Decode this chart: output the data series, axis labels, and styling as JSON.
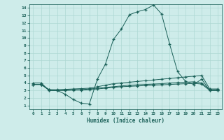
{
  "xlabel": "Humidex (Indice chaleur)",
  "bg_color": "#ceecea",
  "grid_color": "#aed8d4",
  "line_color": "#1a6058",
  "xlim": [
    -0.5,
    23.5
  ],
  "ylim": [
    0.5,
    14.5
  ],
  "xticks": [
    0,
    1,
    2,
    3,
    4,
    5,
    6,
    7,
    8,
    9,
    10,
    11,
    12,
    13,
    14,
    15,
    16,
    17,
    18,
    19,
    20,
    21,
    22,
    23
  ],
  "yticks": [
    1,
    2,
    3,
    4,
    5,
    6,
    7,
    8,
    9,
    10,
    11,
    12,
    13,
    14
  ],
  "series1_x": [
    0,
    1,
    2,
    3,
    4,
    5,
    6,
    7,
    8,
    9,
    10,
    11,
    12,
    13,
    14,
    15,
    16,
    17,
    18,
    19,
    20,
    21,
    22,
    23
  ],
  "series1_y": [
    4.0,
    4.0,
    3.0,
    3.0,
    2.5,
    1.8,
    1.3,
    1.2,
    4.5,
    6.5,
    9.8,
    11.2,
    13.1,
    13.5,
    13.8,
    14.4,
    13.2,
    9.2,
    5.5,
    4.2,
    3.8,
    4.5,
    3.0,
    3.0
  ],
  "series2_x": [
    0,
    1,
    2,
    3,
    4,
    5,
    6,
    7,
    8,
    9,
    10,
    11,
    12,
    13,
    14,
    15,
    16,
    17,
    18,
    19,
    20,
    21,
    22,
    23
  ],
  "series2_y": [
    3.8,
    3.8,
    3.1,
    3.1,
    3.15,
    3.2,
    3.25,
    3.3,
    3.5,
    3.7,
    3.9,
    4.0,
    4.1,
    4.2,
    4.3,
    4.4,
    4.5,
    4.6,
    4.7,
    4.8,
    4.9,
    5.0,
    3.2,
    3.2
  ],
  "series3_x": [
    0,
    1,
    2,
    3,
    4,
    5,
    6,
    7,
    8,
    9,
    10,
    11,
    12,
    13,
    14,
    15,
    16,
    17,
    18,
    19,
    20,
    21,
    22,
    23
  ],
  "series3_y": [
    3.8,
    3.8,
    3.1,
    3.0,
    3.05,
    3.1,
    3.1,
    3.2,
    3.3,
    3.4,
    3.5,
    3.6,
    3.7,
    3.75,
    3.8,
    3.85,
    3.9,
    4.0,
    4.05,
    4.1,
    4.15,
    4.0,
    3.1,
    3.1
  ],
  "series4_x": [
    0,
    1,
    2,
    3,
    4,
    5,
    6,
    7,
    8,
    9,
    10,
    11,
    12,
    13,
    14,
    15,
    16,
    17,
    18,
    19,
    20,
    21,
    22,
    23
  ],
  "series4_y": [
    3.8,
    3.8,
    3.0,
    3.0,
    3.0,
    3.05,
    3.05,
    3.1,
    3.2,
    3.3,
    3.4,
    3.5,
    3.55,
    3.6,
    3.65,
    3.7,
    3.75,
    3.8,
    3.85,
    3.9,
    3.95,
    3.85,
    3.0,
    3.0
  ]
}
